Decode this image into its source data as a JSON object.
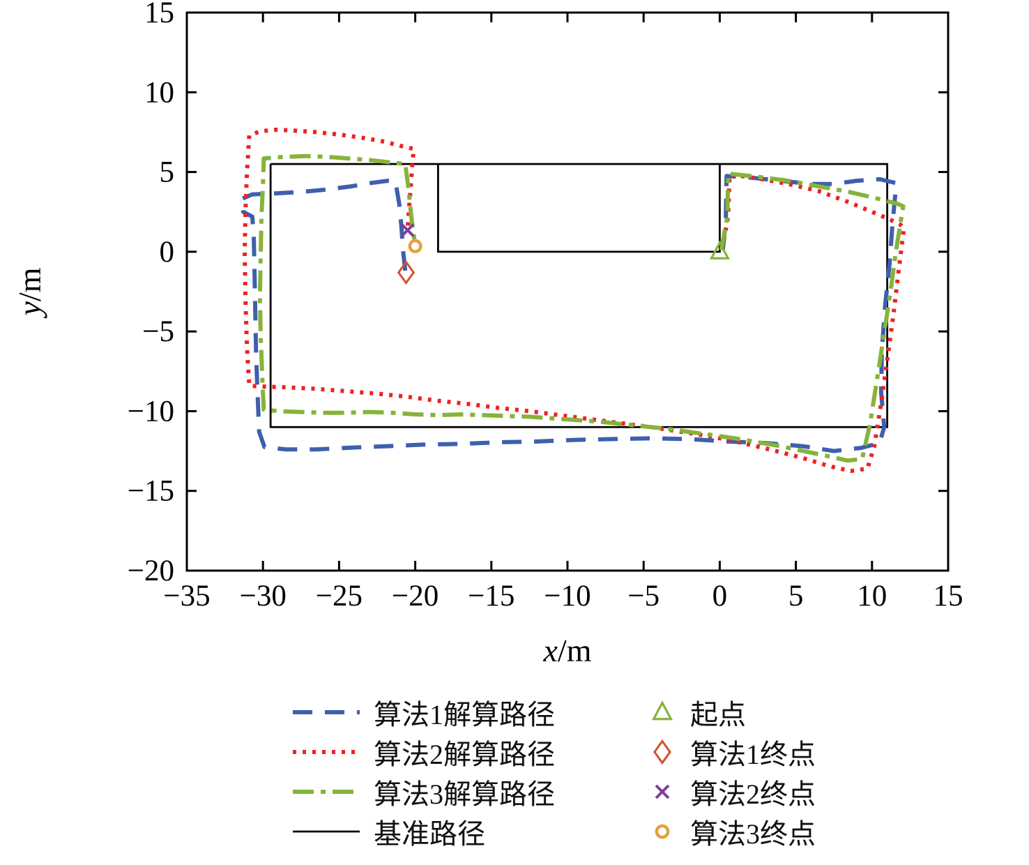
{
  "chart_data": {
    "type": "line",
    "title": "",
    "xlabel": "x/m",
    "ylabel": "y/m",
    "xlim": [
      -35,
      15
    ],
    "ylim": [
      -20,
      15
    ],
    "xticks": [
      -35,
      -30,
      -25,
      -20,
      -15,
      -10,
      -5,
      0,
      5,
      10,
      15
    ],
    "yticks": [
      15,
      10,
      5,
      0,
      -5,
      -10,
      -15,
      -20
    ],
    "grid": false,
    "frame_color": "#000000",
    "reference_path": {
      "label": "基准路径",
      "color": "#000000",
      "segments": [
        [
          [
            -29.5,
            5.5
          ],
          [
            11,
            5.5
          ],
          [
            11,
            -11
          ],
          [
            -29.5,
            -11
          ],
          [
            -29.5,
            5.5
          ]
        ],
        [
          [
            -18.5,
            5.5
          ],
          [
            -18.5,
            0
          ],
          [
            0,
            0
          ],
          [
            0,
            5.5
          ]
        ]
      ]
    },
    "series": [
      {
        "name": "算法1解算路径",
        "color": "#3f5fae",
        "dash": "dashed",
        "points": [
          [
            0.2,
            0.1
          ],
          [
            0.4,
            2.0
          ],
          [
            0.45,
            4.75
          ],
          [
            2,
            4.65
          ],
          [
            4,
            4.45
          ],
          [
            6,
            4.25
          ],
          [
            7.5,
            4.25
          ],
          [
            9,
            4.45
          ],
          [
            10.5,
            4.55
          ],
          [
            11.6,
            4.3
          ],
          [
            11.35,
            1.8
          ],
          [
            11.15,
            -0.8
          ],
          [
            10.85,
            -3.5
          ],
          [
            10.65,
            -6.2
          ],
          [
            10.6,
            -8.8
          ],
          [
            10.8,
            -11.0
          ],
          [
            10.5,
            -12.0
          ],
          [
            9.3,
            -12.3
          ],
          [
            7.5,
            -12.5
          ],
          [
            5.5,
            -12.2
          ],
          [
            3,
            -12.0
          ],
          [
            0.5,
            -11.9
          ],
          [
            -2,
            -11.75
          ],
          [
            -4.5,
            -11.7
          ],
          [
            -7,
            -11.75
          ],
          [
            -9.5,
            -11.8
          ],
          [
            -12,
            -11.9
          ],
          [
            -14.5,
            -11.95
          ],
          [
            -17,
            -12.05
          ],
          [
            -19.5,
            -12.1
          ],
          [
            -22,
            -12.2
          ],
          [
            -24.5,
            -12.3
          ],
          [
            -26.5,
            -12.4
          ],
          [
            -28.5,
            -12.4
          ],
          [
            -29.9,
            -12.25
          ],
          [
            -30.25,
            -11.3
          ],
          [
            -30.35,
            -9.0
          ],
          [
            -30.45,
            -6.5
          ],
          [
            -30.5,
            -4.0
          ],
          [
            -30.55,
            -1.5
          ],
          [
            -30.6,
            0.8
          ],
          [
            -30.7,
            2.2
          ],
          [
            -31.3,
            2.5
          ],
          [
            -31.4,
            3.3
          ],
          [
            -30.7,
            3.6
          ],
          [
            -29.3,
            3.65
          ],
          [
            -27.5,
            3.75
          ],
          [
            -25.8,
            3.9
          ],
          [
            -24.2,
            4.1
          ],
          [
            -23,
            4.3
          ],
          [
            -21.8,
            4.45
          ],
          [
            -21.3,
            4.4
          ],
          [
            -21.05,
            3.0
          ],
          [
            -20.9,
            1.5
          ],
          [
            -20.8,
            0.1
          ],
          [
            -20.65,
            -1.25
          ]
        ]
      },
      {
        "name": "算法2解算路径",
        "color": "#ee2224",
        "dash": "dotted",
        "points": [
          [
            0.15,
            0.1
          ],
          [
            0.55,
            2.2
          ],
          [
            0.65,
            4.85
          ],
          [
            2.5,
            4.6
          ],
          [
            4.5,
            4.25
          ],
          [
            6.5,
            3.8
          ],
          [
            8.5,
            3.1
          ],
          [
            10.5,
            2.3
          ],
          [
            11.8,
            1.75
          ],
          [
            12.1,
            1.5
          ],
          [
            11.75,
            -1.2
          ],
          [
            11.4,
            -4.0
          ],
          [
            11.0,
            -6.8
          ],
          [
            10.6,
            -9.5
          ],
          [
            10.15,
            -12.2
          ],
          [
            9.7,
            -13.6
          ],
          [
            8.6,
            -13.75
          ],
          [
            7.2,
            -13.45
          ],
          [
            5.5,
            -12.95
          ],
          [
            3.5,
            -12.45
          ],
          [
            1.5,
            -12.0
          ],
          [
            -0.5,
            -11.6
          ],
          [
            -2.5,
            -11.3
          ],
          [
            -4.5,
            -11.0
          ],
          [
            -6.5,
            -10.75
          ],
          [
            -8.5,
            -10.5
          ],
          [
            -10.5,
            -10.25
          ],
          [
            -12.5,
            -10.0
          ],
          [
            -14.5,
            -9.8
          ],
          [
            -16.5,
            -9.55
          ],
          [
            -18.5,
            -9.35
          ],
          [
            -20.5,
            -9.1
          ],
          [
            -22.5,
            -8.9
          ],
          [
            -24.5,
            -8.75
          ],
          [
            -26.5,
            -8.6
          ],
          [
            -28.5,
            -8.5
          ],
          [
            -30.2,
            -8.45
          ],
          [
            -30.9,
            -8.4
          ],
          [
            -31.05,
            -6.0
          ],
          [
            -31.15,
            -3.0
          ],
          [
            -31.2,
            0.0
          ],
          [
            -31.15,
            2.5
          ],
          [
            -31.05,
            5.0
          ],
          [
            -30.9,
            7.3
          ],
          [
            -30.2,
            7.55
          ],
          [
            -29.2,
            7.65
          ],
          [
            -28,
            7.6
          ],
          [
            -26.5,
            7.5
          ],
          [
            -25,
            7.35
          ],
          [
            -23.5,
            7.15
          ],
          [
            -22,
            6.9
          ],
          [
            -20.8,
            6.6
          ],
          [
            -20.1,
            6.45
          ],
          [
            -20.2,
            5.3
          ],
          [
            -20.3,
            4.0
          ],
          [
            -20.4,
            2.8
          ],
          [
            -20.5,
            1.4
          ]
        ]
      },
      {
        "name": "算法3解算路径",
        "color": "#86b33a",
        "dash": "dashdot",
        "points": [
          [
            0.1,
            0.1
          ],
          [
            0.5,
            2.2
          ],
          [
            0.55,
            4.9
          ],
          [
            2.5,
            4.7
          ],
          [
            4.5,
            4.45
          ],
          [
            6.5,
            4.1
          ],
          [
            8.5,
            3.75
          ],
          [
            10.5,
            3.3
          ],
          [
            11.7,
            3.0
          ],
          [
            12.05,
            2.85
          ],
          [
            11.6,
            0.2
          ],
          [
            11.2,
            -2.6
          ],
          [
            10.75,
            -5.4
          ],
          [
            10.3,
            -8.2
          ],
          [
            9.85,
            -10.9
          ],
          [
            9.35,
            -13.0
          ],
          [
            8.4,
            -13.1
          ],
          [
            7,
            -12.8
          ],
          [
            5.5,
            -12.5
          ],
          [
            4,
            -12.2
          ],
          [
            2.5,
            -11.95
          ],
          [
            1,
            -11.7
          ],
          [
            -0.5,
            -11.5
          ],
          [
            -2,
            -11.3
          ],
          [
            -3.5,
            -11.1
          ],
          [
            -5,
            -10.95
          ],
          [
            -6.5,
            -10.8
          ],
          [
            -8,
            -10.65
          ],
          [
            -9.5,
            -10.55
          ],
          [
            -11,
            -10.45
          ],
          [
            -12.5,
            -10.35
          ],
          [
            -14,
            -10.3
          ],
          [
            -15.5,
            -10.25
          ],
          [
            -17,
            -10.2
          ],
          [
            -18.5,
            -10.25
          ],
          [
            -20,
            -10.2
          ],
          [
            -21.5,
            -10.1
          ],
          [
            -23,
            -10.05
          ],
          [
            -24.5,
            -10.1
          ],
          [
            -26,
            -10.1
          ],
          [
            -27.5,
            -10.05
          ],
          [
            -29,
            -10.0
          ],
          [
            -29.95,
            -9.9
          ],
          [
            -30.05,
            -7.8
          ],
          [
            -30.15,
            -5.3
          ],
          [
            -30.2,
            -2.8
          ],
          [
            -30.15,
            -0.3
          ],
          [
            -30.1,
            2.2
          ],
          [
            -30.0,
            4.2
          ],
          [
            -29.95,
            5.85
          ],
          [
            -28.6,
            5.95
          ],
          [
            -27.2,
            6.0
          ],
          [
            -25.8,
            5.95
          ],
          [
            -24.4,
            5.85
          ],
          [
            -23,
            5.75
          ],
          [
            -21.6,
            5.6
          ],
          [
            -20.65,
            5.5
          ],
          [
            -20.45,
            4.0
          ],
          [
            -20.3,
            2.6
          ],
          [
            -20.15,
            1.3
          ],
          [
            -20.0,
            0.5
          ]
        ]
      }
    ],
    "point_markers": [
      {
        "name": "start-point",
        "type": "triangle",
        "color": "#86b33a",
        "x": 0,
        "y": 0
      },
      {
        "name": "alg1-end-point",
        "type": "diamond",
        "color": "#d0532f",
        "x": -20.6,
        "y": -1.3
      },
      {
        "name": "alg2-end-point",
        "type": "x",
        "color": "#7b3f9d",
        "x": -20.5,
        "y": 1.35
      },
      {
        "name": "alg3-end-point",
        "type": "circle",
        "color": "#e4a23c",
        "x": -20.0,
        "y": 0.35
      }
    ],
    "legend": {
      "position": "below",
      "left": [
        {
          "label": "算法1解算路径",
          "color": "#3f5fae",
          "dash": "dashed"
        },
        {
          "label": "算法2解算路径",
          "color": "#ee2224",
          "dash": "dotted"
        },
        {
          "label": "算法3解算路径",
          "color": "#86b33a",
          "dash": "dashdot"
        },
        {
          "label": "基准路径",
          "color": "#000000",
          "dash": "solid"
        }
      ],
      "right": [
        {
          "label": "起点",
          "marker": "triangle",
          "color": "#86b33a"
        },
        {
          "label": "算法1终点",
          "marker": "diamond",
          "color": "#d0532f"
        },
        {
          "label": "算法2终点",
          "marker": "x",
          "color": "#7b3f9d"
        },
        {
          "label": "算法3终点",
          "marker": "circle",
          "color": "#e4a23c"
        }
      ]
    }
  }
}
